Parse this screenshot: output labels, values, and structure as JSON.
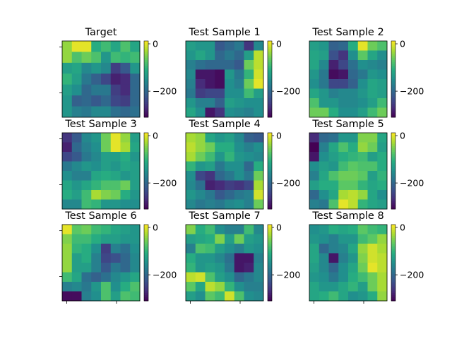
{
  "figure": {
    "colormap": "viridis",
    "colorbar_ticks": [
      {
        "label": "0",
        "value": 0
      },
      {
        "label": "−200",
        "value": -200
      }
    ],
    "vmin": -310,
    "vmax": 12
  },
  "chart_data": [
    {
      "type": "heatmap",
      "title": "Target",
      "grid": [
        [
          -40,
          0,
          0,
          -110,
          -90,
          -120,
          -80,
          -120
        ],
        [
          -40,
          -80,
          -60,
          -80,
          -140,
          -90,
          -100,
          -90
        ],
        [
          -130,
          -120,
          -160,
          -140,
          -160,
          -250,
          -220,
          -140
        ],
        [
          -100,
          -130,
          -180,
          -210,
          -240,
          -280,
          -270,
          -200
        ],
        [
          -130,
          -150,
          -200,
          -180,
          -180,
          -250,
          -270,
          -200
        ],
        [
          -140,
          -210,
          -200,
          -220,
          -200,
          -240,
          -250,
          -200
        ],
        [
          -140,
          -170,
          -180,
          -160,
          -160,
          -190,
          -200,
          -190
        ]
      ]
    },
    {
      "type": "heatmap",
      "title": "Test Sample 1",
      "grid": [
        [
          -130,
          -140,
          -140,
          -220,
          -200,
          -180,
          -260,
          -160
        ],
        [
          -140,
          -120,
          -140,
          -200,
          -180,
          -200,
          -130,
          -20
        ],
        [
          -170,
          -190,
          -200,
          -200,
          -200,
          -220,
          -60,
          -20
        ],
        [
          -160,
          -290,
          -290,
          -300,
          -140,
          -180,
          -100,
          -10
        ],
        [
          -170,
          -270,
          -290,
          -300,
          -150,
          -170,
          -60,
          0
        ],
        [
          -180,
          -250,
          -240,
          -240,
          -150,
          -150,
          -90,
          -130
        ],
        [
          -140,
          -170,
          -170,
          -210,
          -130,
          -140,
          -150,
          -150
        ],
        [
          -120,
          -150,
          -290,
          -260,
          -150,
          -160,
          -170,
          -150
        ]
      ]
    },
    {
      "type": "heatmap",
      "title": "Test Sample 2",
      "grid": [
        [
          -130,
          -140,
          -210,
          -200,
          -110,
          0,
          -60,
          -80
        ],
        [
          -120,
          -130,
          -230,
          -260,
          -150,
          -70,
          -120,
          -150
        ],
        [
          -120,
          -160,
          -280,
          -240,
          -190,
          -150,
          -160,
          -170
        ],
        [
          -140,
          -180,
          -300,
          -290,
          -200,
          -180,
          -140,
          -150
        ],
        [
          -150,
          -180,
          -240,
          -240,
          -210,
          -150,
          -120,
          -130
        ],
        [
          -120,
          -140,
          -170,
          -160,
          -160,
          -140,
          -120,
          -130
        ],
        [
          -80,
          -140,
          -140,
          -160,
          -160,
          -150,
          -130,
          -90
        ],
        [
          -60,
          -60,
          -110,
          -150,
          -150,
          -130,
          -90,
          -60
        ]
      ]
    },
    {
      "type": "heatmap",
      "title": "Test Sample 3",
      "grid": [
        [
          -260,
          -220,
          -160,
          -140,
          -60,
          0,
          -40,
          -130
        ],
        [
          -280,
          -200,
          -170,
          -150,
          -60,
          0,
          -30,
          -120
        ],
        [
          -240,
          -220,
          -180,
          -160,
          -130,
          -130,
          -110,
          -140
        ],
        [
          -180,
          -160,
          -140,
          -150,
          -130,
          -140,
          -120,
          -130
        ],
        [
          -150,
          -170,
          -170,
          -120,
          -110,
          -120,
          -140,
          -130
        ],
        [
          -120,
          -140,
          -120,
          -100,
          -80,
          -80,
          -60,
          -130
        ],
        [
          -110,
          -130,
          -90,
          -30,
          -50,
          -60,
          -110,
          -140
        ],
        [
          -160,
          -160,
          -90,
          -100,
          -140,
          -140,
          -150,
          -150
        ]
      ]
    },
    {
      "type": "heatmap",
      "title": "Test Sample 4",
      "grid": [
        [
          -30,
          -40,
          -120,
          -140,
          -130,
          -160,
          -210,
          -220
        ],
        [
          -20,
          -40,
          -60,
          -110,
          -110,
          -150,
          -170,
          -150
        ],
        [
          -30,
          -60,
          -90,
          -140,
          -100,
          -140,
          -150,
          -160
        ],
        [
          -100,
          -140,
          -130,
          -180,
          -150,
          -150,
          -200,
          -110
        ],
        [
          -150,
          -240,
          -260,
          -200,
          -180,
          -150,
          -180,
          -60
        ],
        [
          -160,
          -190,
          -280,
          -270,
          -250,
          -260,
          -240,
          -30
        ],
        [
          -140,
          -160,
          -180,
          -220,
          -200,
          -180,
          -170,
          -10
        ],
        [
          -160,
          -180,
          -170,
          -180,
          -160,
          -150,
          -170,
          -60
        ]
      ]
    },
    {
      "type": "heatmap",
      "title": "Test Sample 5",
      "grid": [
        [
          -270,
          -200,
          -190,
          -140,
          -140,
          -50,
          -50,
          -120
        ],
        [
          -310,
          -170,
          -120,
          -80,
          -110,
          -40,
          -60,
          -130
        ],
        [
          -290,
          -150,
          -130,
          -110,
          -100,
          -90,
          -130,
          -110
        ],
        [
          -150,
          -130,
          -140,
          -90,
          -70,
          -80,
          -80,
          -110
        ],
        [
          -170,
          -120,
          -80,
          -60,
          -60,
          -70,
          -130,
          -100
        ],
        [
          -130,
          -110,
          -110,
          -70,
          -70,
          -100,
          -120,
          -110
        ],
        [
          -200,
          -150,
          -120,
          -30,
          -20,
          -40,
          -120,
          -150
        ],
        [
          -170,
          -180,
          -80,
          0,
          -20,
          -100,
          -120,
          -130
        ]
      ]
    },
    {
      "type": "heatmap",
      "title": "Test Sample 6",
      "grid": [
        [
          0,
          -70,
          -60,
          -90,
          -100,
          -120,
          -130,
          -140
        ],
        [
          -50,
          -90,
          -90,
          -110,
          -130,
          -130,
          -140,
          -140
        ],
        [
          -40,
          -100,
          -110,
          -150,
          -250,
          -170,
          -190,
          -150
        ],
        [
          -40,
          -130,
          -110,
          -170,
          -240,
          -230,
          -200,
          -160
        ],
        [
          -40,
          -130,
          -130,
          -170,
          -220,
          -180,
          -200,
          -160
        ],
        [
          -90,
          -120,
          -190,
          -210,
          -190,
          -160,
          -140,
          -120
        ],
        [
          -170,
          -160,
          -180,
          -140,
          -80,
          -150,
          -110,
          -80
        ],
        [
          -300,
          -300,
          -170,
          -150,
          -80,
          -130,
          -80,
          -90
        ]
      ]
    },
    {
      "type": "heatmap",
      "title": "Test Sample 7",
      "grid": [
        [
          -50,
          -110,
          -90,
          -150,
          -170,
          -170,
          -90,
          -160
        ],
        [
          -130,
          -120,
          -110,
          -50,
          -130,
          -60,
          -130,
          -140
        ],
        [
          -170,
          -80,
          -90,
          -130,
          -150,
          -170,
          -140,
          -150
        ],
        [
          -110,
          -140,
          -140,
          -160,
          -190,
          -290,
          -290,
          -170
        ],
        [
          -100,
          -140,
          -130,
          -140,
          -180,
          -290,
          -280,
          -160
        ],
        [
          -20,
          -10,
          -80,
          -130,
          -150,
          -200,
          -180,
          -160
        ],
        [
          -70,
          -120,
          -20,
          -40,
          -100,
          -150,
          -170,
          -170
        ],
        [
          -130,
          -150,
          -70,
          -90,
          -10,
          -80,
          -150,
          -160
        ]
      ]
    },
    {
      "type": "heatmap",
      "title": "Test Sample 8",
      "grid": [
        [
          -150,
          -140,
          -110,
          -120,
          -110,
          -70,
          -90,
          -100
        ],
        [
          -140,
          -150,
          -170,
          -140,
          -140,
          -90,
          -70,
          -40
        ],
        [
          -120,
          -200,
          -170,
          -160,
          -120,
          -40,
          -10,
          -30
        ],
        [
          -120,
          -160,
          -290,
          -170,
          -140,
          -50,
          -10,
          -20
        ],
        [
          -130,
          -160,
          -200,
          -150,
          -120,
          -60,
          0,
          -20
        ],
        [
          -140,
          -150,
          -180,
          -150,
          -110,
          -90,
          -60,
          -30
        ],
        [
          -120,
          -140,
          -140,
          -120,
          -100,
          -130,
          -60,
          -30
        ],
        [
          -120,
          -110,
          -90,
          -120,
          -150,
          -140,
          -110,
          -40
        ]
      ]
    }
  ]
}
